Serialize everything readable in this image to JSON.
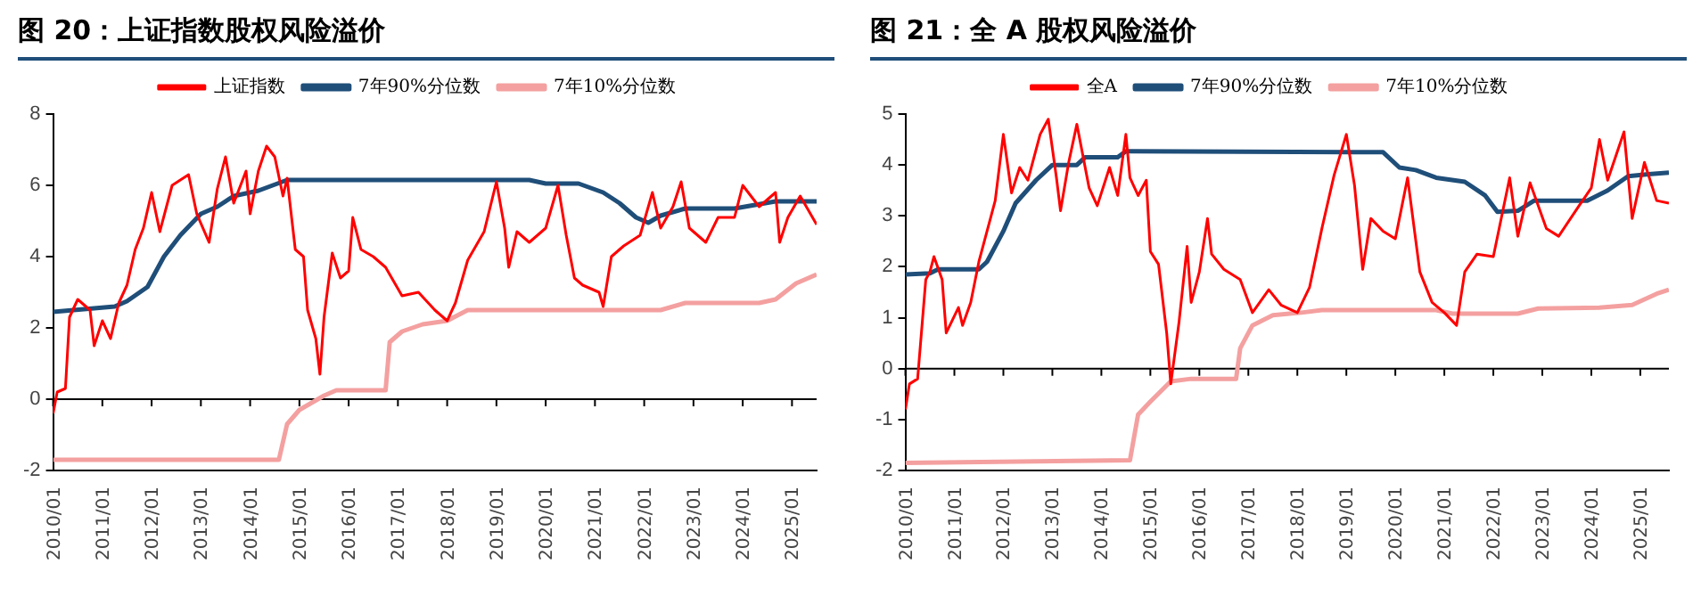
{
  "chart_data": [
    {
      "type": "line",
      "title": "图 20：上证指数股权风险溢价",
      "legend": "top",
      "grid": false,
      "ref_lines": [
        {
          "axis": "y",
          "value": 0,
          "color": "#000000"
        }
      ],
      "xlim": [
        "2010-01",
        "2025-07"
      ],
      "xticks": [
        {
          "value": "2010-01",
          "label": "2010/01"
        },
        {
          "value": "2011-01",
          "label": "2011/01"
        },
        {
          "value": "2012-01",
          "label": "2012/01"
        },
        {
          "value": "2013-01",
          "label": "2013/01"
        },
        {
          "value": "2014-01",
          "label": "2014/01"
        },
        {
          "value": "2015-01",
          "label": "2015/01"
        },
        {
          "value": "2016-01",
          "label": "2016/01"
        },
        {
          "value": "2017-01",
          "label": "2017/01"
        },
        {
          "value": "2018-01",
          "label": "2018/01"
        },
        {
          "value": "2019-01",
          "label": "2019/01"
        },
        {
          "value": "2020-01",
          "label": "2020/01"
        },
        {
          "value": "2021-01",
          "label": "2021/01"
        },
        {
          "value": "2022-01",
          "label": "2022/01"
        },
        {
          "value": "2023-01",
          "label": "2023/01"
        },
        {
          "value": "2024-01",
          "label": "2024/01"
        },
        {
          "value": "2025-01",
          "label": "2025/01"
        }
      ],
      "ylim": [
        -2,
        8
      ],
      "yticks": [
        -2,
        0,
        2,
        4,
        6,
        8
      ],
      "series": [
        {
          "name": "上证指数",
          "color": "#ff0000",
          "x": [
            "2010-01",
            "2010-02",
            "2010-04",
            "2010-05",
            "2010-07",
            "2010-10",
            "2010-11",
            "2011-01",
            "2011-03",
            "2011-05",
            "2011-07",
            "2011-09",
            "2011-11",
            "2012-01",
            "2012-03",
            "2012-06",
            "2012-10",
            "2012-12",
            "2013-03",
            "2013-05",
            "2013-07",
            "2013-09",
            "2013-12",
            "2014-01",
            "2014-03",
            "2014-05",
            "2014-07",
            "2014-09",
            "2014-10",
            "2014-12",
            "2015-02",
            "2015-03",
            "2015-05",
            "2015-06",
            "2015-07",
            "2015-09",
            "2015-11",
            "2016-01",
            "2016-02",
            "2016-04",
            "2016-07",
            "2016-10",
            "2017-02",
            "2017-06",
            "2017-10",
            "2018-01",
            "2018-03",
            "2018-06",
            "2018-10",
            "2019-01",
            "2019-03",
            "2019-04",
            "2019-06",
            "2019-09",
            "2020-01",
            "2020-04",
            "2020-06",
            "2020-08",
            "2020-10",
            "2021-02",
            "2021-03",
            "2021-05",
            "2021-08",
            "2021-12",
            "2022-03",
            "2022-05",
            "2022-08",
            "2022-10",
            "2022-12",
            "2023-04",
            "2023-07",
            "2023-11",
            "2024-01",
            "2024-05",
            "2024-09",
            "2024-10",
            "2024-12",
            "2025-03",
            "2025-07"
          ],
          "values": [
            -0.4,
            0.2,
            0.3,
            2.3,
            2.8,
            2.5,
            1.5,
            2.2,
            1.7,
            2.7,
            3.2,
            4.2,
            4.8,
            5.8,
            4.7,
            6.0,
            6.3,
            5.2,
            4.4,
            5.9,
            6.8,
            5.5,
            6.4,
            5.2,
            6.4,
            7.1,
            6.8,
            5.7,
            6.2,
            4.2,
            4.0,
            2.5,
            1.7,
            0.7,
            2.3,
            4.1,
            3.4,
            3.6,
            5.1,
            4.2,
            4.0,
            3.7,
            2.9,
            3.0,
            2.5,
            2.2,
            2.7,
            3.9,
            4.7,
            6.1,
            4.8,
            3.7,
            4.7,
            4.4,
            4.8,
            6.0,
            4.6,
            3.4,
            3.2,
            3.0,
            2.6,
            4.0,
            4.3,
            4.6,
            5.8,
            4.8,
            5.4,
            6.1,
            4.8,
            4.4,
            5.1,
            5.1,
            6.0,
            5.4,
            5.8,
            4.4,
            5.1,
            5.7,
            4.9
          ]
        },
        {
          "name": "7年90%分位数",
          "color": "#1f4e79",
          "x": [
            "2010-01",
            "2011-04",
            "2011-07",
            "2011-12",
            "2012-04",
            "2012-08",
            "2013-01",
            "2013-05",
            "2013-09",
            "2014-03",
            "2014-10",
            "2019-09",
            "2020-01",
            "2020-09",
            "2021-03",
            "2021-07",
            "2021-11",
            "2022-02",
            "2022-05",
            "2022-11",
            "2023-11",
            "2024-09",
            "2025-07"
          ],
          "values": [
            2.45,
            2.6,
            2.75,
            3.15,
            4.0,
            4.6,
            5.2,
            5.4,
            5.7,
            5.85,
            6.15,
            6.15,
            6.05,
            6.05,
            5.8,
            5.5,
            5.1,
            4.95,
            5.15,
            5.35,
            5.35,
            5.55,
            5.55
          ]
        },
        {
          "name": "7年10%分位数",
          "color": "#f4a0a0",
          "x": [
            "2010-01",
            "2014-08",
            "2014-10",
            "2015-01",
            "2015-07",
            "2015-10",
            "2016-10",
            "2016-11",
            "2017-02",
            "2017-07",
            "2018-01",
            "2018-06",
            "2022-05",
            "2022-11",
            "2024-05",
            "2024-09",
            "2025-02",
            "2025-07"
          ],
          "values": [
            -1.7,
            -1.7,
            -0.7,
            -0.3,
            0.1,
            0.25,
            0.25,
            1.6,
            1.9,
            2.1,
            2.2,
            2.5,
            2.5,
            2.7,
            2.7,
            2.8,
            3.25,
            3.5
          ]
        }
      ]
    },
    {
      "type": "line",
      "title": "图 21：全 A 股权风险溢价",
      "legend": "top",
      "grid": false,
      "ref_lines": [
        {
          "axis": "y",
          "value": 0,
          "color": "#000000"
        }
      ],
      "xlim": [
        "2010-01",
        "2025-08"
      ],
      "xticks": [
        {
          "value": "2010-01",
          "label": "2010/01"
        },
        {
          "value": "2011-01",
          "label": "2011/01"
        },
        {
          "value": "2012-01",
          "label": "2012/01"
        },
        {
          "value": "2013-01",
          "label": "2013/01"
        },
        {
          "value": "2014-01",
          "label": "2014/01"
        },
        {
          "value": "2015-01",
          "label": "2015/01"
        },
        {
          "value": "2016-01",
          "label": "2016/01"
        },
        {
          "value": "2017-01",
          "label": "2017/01"
        },
        {
          "value": "2018-01",
          "label": "2018/01"
        },
        {
          "value": "2019-01",
          "label": "2019/01"
        },
        {
          "value": "2020-01",
          "label": "2020/01"
        },
        {
          "value": "2021-01",
          "label": "2021/01"
        },
        {
          "value": "2022-01",
          "label": "2022/01"
        },
        {
          "value": "2023-01",
          "label": "2023/01"
        },
        {
          "value": "2024-01",
          "label": "2024/01"
        },
        {
          "value": "2025-01",
          "label": "2025/01"
        }
      ],
      "ylim": [
        -2,
        5
      ],
      "yticks": [
        -2,
        -1,
        0,
        1,
        2,
        3,
        4,
        5
      ],
      "series": [
        {
          "name": "全A",
          "color": "#ff0000",
          "x": [
            "2010-01",
            "2010-02",
            "2010-04",
            "2010-06",
            "2010-07",
            "2010-08",
            "2010-10",
            "2010-11",
            "2011-02",
            "2011-03",
            "2011-05",
            "2011-07",
            "2011-09",
            "2011-11",
            "2012-01",
            "2012-03",
            "2012-05",
            "2012-07",
            "2012-10",
            "2012-12",
            "2013-02",
            "2013-03",
            "2013-05",
            "2013-07",
            "2013-10",
            "2013-12",
            "2014-03",
            "2014-05",
            "2014-07",
            "2014-08",
            "2014-10",
            "2014-12",
            "2015-01",
            "2015-03",
            "2015-05",
            "2015-06",
            "2015-08",
            "2015-10",
            "2015-11",
            "2016-01",
            "2016-03",
            "2016-04",
            "2016-07",
            "2016-11",
            "2017-02",
            "2017-06",
            "2017-09",
            "2018-01",
            "2018-04",
            "2018-07",
            "2018-10",
            "2019-01",
            "2019-03",
            "2019-05",
            "2019-07",
            "2019-10",
            "2020-01",
            "2020-04",
            "2020-07",
            "2020-10",
            "2021-01",
            "2021-04",
            "2021-06",
            "2021-09",
            "2022-01",
            "2022-05",
            "2022-07",
            "2022-10",
            "2023-02",
            "2023-05",
            "2023-10",
            "2024-01",
            "2024-03",
            "2024-05",
            "2024-09",
            "2024-11",
            "2025-02",
            "2025-05",
            "2025-08"
          ],
          "values": [
            -0.8,
            -0.3,
            -0.2,
            1.75,
            1.9,
            2.2,
            1.75,
            0.7,
            1.2,
            0.85,
            1.3,
            2.1,
            2.7,
            3.3,
            4.6,
            3.45,
            3.95,
            3.7,
            4.6,
            4.9,
            3.75,
            3.1,
            4.05,
            4.8,
            3.55,
            3.2,
            3.95,
            3.4,
            4.6,
            3.75,
            3.4,
            3.7,
            2.3,
            2.05,
            0.7,
            -0.3,
            0.9,
            2.4,
            1.3,
            1.9,
            2.95,
            2.25,
            1.95,
            1.75,
            1.1,
            1.55,
            1.25,
            1.1,
            1.6,
            2.75,
            3.8,
            4.6,
            3.6,
            1.95,
            2.95,
            2.7,
            2.55,
            3.75,
            1.9,
            1.3,
            1.1,
            0.85,
            1.9,
            2.25,
            2.2,
            3.75,
            2.6,
            3.65,
            2.75,
            2.6,
            3.2,
            3.55,
            4.5,
            3.7,
            4.65,
            2.95,
            4.05,
            3.3,
            3.25
          ]
        },
        {
          "name": "7年90%分位数",
          "color": "#1f4e79",
          "x": [
            "2010-01",
            "2010-07",
            "2010-09",
            "2011-07",
            "2011-09",
            "2012-01",
            "2012-04",
            "2012-09",
            "2013-01",
            "2013-07",
            "2013-09",
            "2014-05",
            "2014-07",
            "2019-02",
            "2019-10",
            "2020-02",
            "2020-06",
            "2020-11",
            "2021-06",
            "2021-11",
            "2022-02",
            "2022-07",
            "2022-11",
            "2023-12",
            "2024-05",
            "2024-10",
            "2025-03",
            "2025-08"
          ],
          "values": [
            1.85,
            1.87,
            1.95,
            1.95,
            2.1,
            2.7,
            3.25,
            3.7,
            4.0,
            4.0,
            4.15,
            4.15,
            4.27,
            4.25,
            4.25,
            3.95,
            3.9,
            3.75,
            3.67,
            3.4,
            3.08,
            3.1,
            3.3,
            3.3,
            3.5,
            3.78,
            3.82,
            3.85
          ]
        },
        {
          "name": "7年10%分位数",
          "color": "#f4a0a0",
          "x": [
            "2010-01",
            "2014-08",
            "2014-10",
            "2015-01",
            "2015-06",
            "2015-11",
            "2016-10",
            "2016-11",
            "2017-02",
            "2017-07",
            "2018-02",
            "2018-07",
            "2020-11",
            "2021-03",
            "2022-07",
            "2022-12",
            "2024-03",
            "2024-11",
            "2025-05",
            "2025-08"
          ],
          "values": [
            -1.85,
            -1.8,
            -0.9,
            -0.65,
            -0.25,
            -0.2,
            -0.2,
            0.4,
            0.85,
            1.05,
            1.1,
            1.15,
            1.15,
            1.08,
            1.08,
            1.18,
            1.2,
            1.25,
            1.47,
            1.55
          ]
        }
      ]
    }
  ]
}
